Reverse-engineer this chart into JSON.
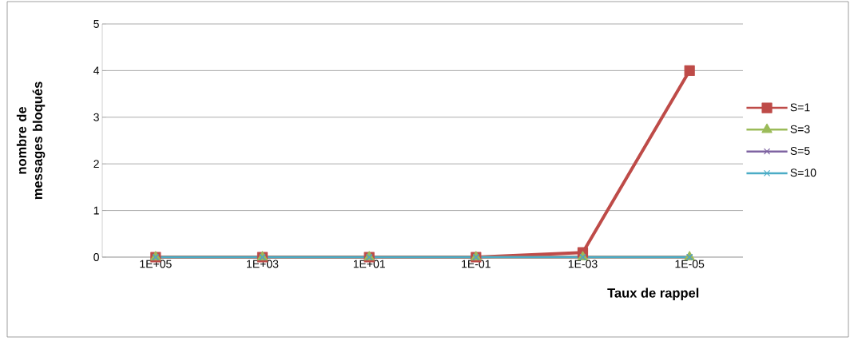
{
  "chart_data": {
    "type": "line",
    "xlabel": "Taux de rappel",
    "ylabel": "nombre de messages bloqués",
    "categories": [
      "1E+05",
      "1E+03",
      "1E+01",
      "1E-01",
      "1E-03",
      "1E-05"
    ],
    "ylim": [
      0,
      5
    ],
    "yticks": [
      0,
      1,
      2,
      3,
      4,
      5
    ],
    "grid": "y",
    "legend": "right",
    "series": [
      {
        "name": "S=1",
        "color": "#be4b48",
        "marker": "square",
        "values": [
          0,
          0,
          0,
          0,
          0.1,
          4
        ]
      },
      {
        "name": "S=3",
        "color": "#9bbb59",
        "marker": "triangle",
        "values": [
          0,
          0,
          0,
          0,
          0,
          0
        ]
      },
      {
        "name": "S=5",
        "color": "#7f64a2",
        "marker": "cross",
        "values": [
          0,
          0,
          0,
          0,
          0,
          0
        ]
      },
      {
        "name": "S=10",
        "color": "#4bacc6",
        "marker": "cross",
        "values": [
          0,
          0,
          0,
          0,
          0,
          0
        ]
      }
    ]
  }
}
